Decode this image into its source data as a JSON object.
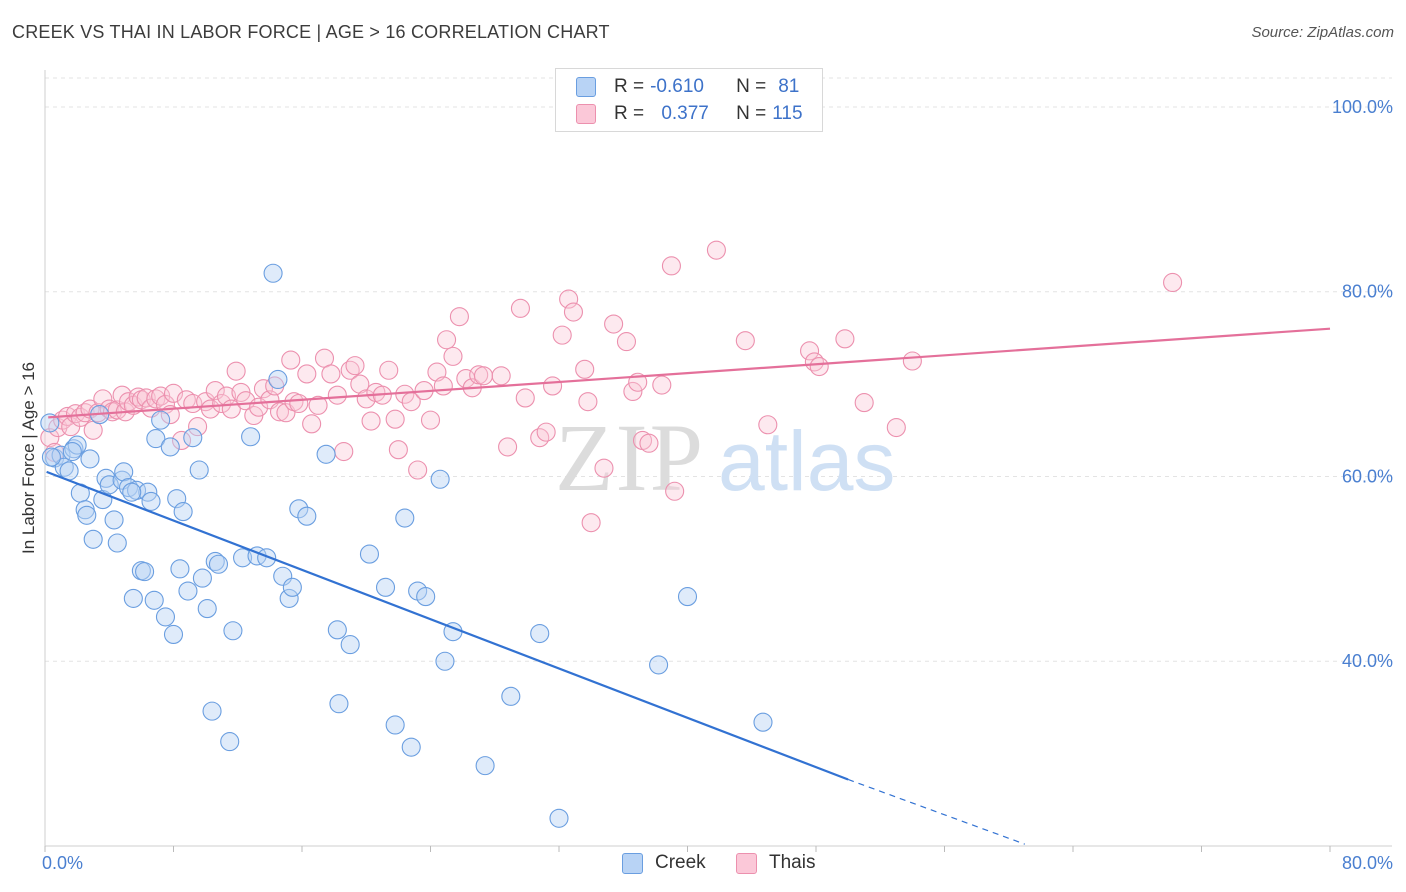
{
  "title": "CREEK VS THAI IN LABOR FORCE | AGE > 16 CORRELATION CHART",
  "source": "Source: ZipAtlas.com",
  "watermark": {
    "zip": "ZIP",
    "atlas": "atlas"
  },
  "legend": {
    "r_label": "R =",
    "n_label": "N =",
    "rows": [
      {
        "r": "-0.610",
        "n": "81",
        "fill": "#b8d3f5",
        "stroke": "#6a9ee0"
      },
      {
        "r": "0.377",
        "n": "115",
        "fill": "#fbc8d8",
        "stroke": "#ec90ae"
      }
    ]
  },
  "colors": {
    "creek_line": "#3272d2",
    "thai_line": "#e4709a",
    "grid": "#e3e3e3",
    "tick_label": "#4a7fd0"
  },
  "chart_data": {
    "type": "scatter",
    "xlabel": "",
    "ylabel": "In Labor Force | Age > 16",
    "xlim": [
      0,
      80
    ],
    "ylim": [
      20,
      104
    ],
    "x_tick_labels": [
      {
        "value": 0,
        "label": "0.0%"
      },
      {
        "value": 80,
        "label": "80.0%"
      }
    ],
    "y_tick_labels": [
      {
        "value": 40,
        "label": "40.0%"
      },
      {
        "value": 60,
        "label": "60.0%"
      },
      {
        "value": 80,
        "label": "80.0%"
      },
      {
        "value": 100,
        "label": "100.0%"
      }
    ],
    "y_grid": [
      40,
      60,
      80,
      100
    ],
    "grid": true,
    "legend_position": "top-center",
    "series": [
      {
        "name": "Creek",
        "r": -0.61,
        "n": 81,
        "trend": {
          "x0": 0.1,
          "y0": 60.5,
          "x1": 50,
          "y1": 27.2,
          "dash_to_x": 61,
          "dash_to_y": 20.2
        },
        "points": [
          [
            0.3,
            65.8
          ],
          [
            0.6,
            62.0
          ],
          [
            1.0,
            62.3
          ],
          [
            1.2,
            61.0
          ],
          [
            1.5,
            60.6
          ],
          [
            1.8,
            63.0
          ],
          [
            2.0,
            63.4
          ],
          [
            2.2,
            58.2
          ],
          [
            2.5,
            56.4
          ],
          [
            2.6,
            55.8
          ],
          [
            2.8,
            61.9
          ],
          [
            3.0,
            53.2
          ],
          [
            3.4,
            66.7
          ],
          [
            3.6,
            57.5
          ],
          [
            3.8,
            59.8
          ],
          [
            4.0,
            59.1
          ],
          [
            4.3,
            55.3
          ],
          [
            4.5,
            52.8
          ],
          [
            4.8,
            59.6
          ],
          [
            4.9,
            60.5
          ],
          [
            5.2,
            58.8
          ],
          [
            5.5,
            46.8
          ],
          [
            5.7,
            58.5
          ],
          [
            6.0,
            49.8
          ],
          [
            6.2,
            49.7
          ],
          [
            6.4,
            58.3
          ],
          [
            6.6,
            57.3
          ],
          [
            6.8,
            46.6
          ],
          [
            6.9,
            64.1
          ],
          [
            7.2,
            66.1
          ],
          [
            7.5,
            44.8
          ],
          [
            7.8,
            63.2
          ],
          [
            8.0,
            42.9
          ],
          [
            8.2,
            57.6
          ],
          [
            8.4,
            50.0
          ],
          [
            8.6,
            56.2
          ],
          [
            8.9,
            47.6
          ],
          [
            9.2,
            64.2
          ],
          [
            9.6,
            60.7
          ],
          [
            9.8,
            49.0
          ],
          [
            10.1,
            45.7
          ],
          [
            10.4,
            34.6
          ],
          [
            10.6,
            50.8
          ],
          [
            10.8,
            50.5
          ],
          [
            11.5,
            31.3
          ],
          [
            11.7,
            43.3
          ],
          [
            12.3,
            51.2
          ],
          [
            12.8,
            64.3
          ],
          [
            13.2,
            51.4
          ],
          [
            13.8,
            51.2
          ],
          [
            14.2,
            82.0
          ],
          [
            14.5,
            70.5
          ],
          [
            14.8,
            49.2
          ],
          [
            15.2,
            46.8
          ],
          [
            15.4,
            48.0
          ],
          [
            15.8,
            56.5
          ],
          [
            16.3,
            55.7
          ],
          [
            17.5,
            62.4
          ],
          [
            18.2,
            43.4
          ],
          [
            18.3,
            35.4
          ],
          [
            19.0,
            41.8
          ],
          [
            20.2,
            51.6
          ],
          [
            21.2,
            48.0
          ],
          [
            21.8,
            33.1
          ],
          [
            22.4,
            55.5
          ],
          [
            22.8,
            30.7
          ],
          [
            23.2,
            47.6
          ],
          [
            23.7,
            47.0
          ],
          [
            24.6,
            59.7
          ],
          [
            24.9,
            40.0
          ],
          [
            25.4,
            43.2
          ],
          [
            27.4,
            28.7
          ],
          [
            29.0,
            36.2
          ],
          [
            30.8,
            43.0
          ],
          [
            32.0,
            23.0
          ],
          [
            38.2,
            39.6
          ],
          [
            40.0,
            47.0
          ],
          [
            44.7,
            33.4
          ],
          [
            0.4,
            62.1
          ],
          [
            1.7,
            62.7
          ],
          [
            5.4,
            58.3
          ]
        ]
      },
      {
        "name": "Thais",
        "r": 0.377,
        "n": 115,
        "trend": {
          "x0": 0.2,
          "y0": 66.4,
          "x1": 80,
          "y1": 76.0
        },
        "points": [
          [
            0.3,
            64.2
          ],
          [
            0.6,
            62.6
          ],
          [
            0.8,
            65.3
          ],
          [
            1.1,
            66.1
          ],
          [
            1.4,
            66.5
          ],
          [
            1.6,
            65.4
          ],
          [
            1.9,
            66.8
          ],
          [
            2.2,
            66.4
          ],
          [
            2.5,
            66.9
          ],
          [
            2.8,
            67.3
          ],
          [
            3.0,
            65.0
          ],
          [
            3.3,
            66.9
          ],
          [
            3.6,
            68.4
          ],
          [
            4.0,
            67.3
          ],
          [
            4.2,
            67.0
          ],
          [
            4.5,
            67.2
          ],
          [
            4.8,
            68.8
          ],
          [
            5.0,
            67.0
          ],
          [
            5.2,
            68.1
          ],
          [
            5.5,
            67.7
          ],
          [
            5.8,
            68.6
          ],
          [
            6.0,
            68.3
          ],
          [
            6.3,
            68.5
          ],
          [
            6.6,
            67.4
          ],
          [
            6.9,
            68.4
          ],
          [
            7.2,
            68.7
          ],
          [
            7.5,
            67.8
          ],
          [
            7.8,
            66.7
          ],
          [
            8.0,
            69.0
          ],
          [
            8.5,
            63.9
          ],
          [
            8.8,
            68.3
          ],
          [
            9.2,
            67.9
          ],
          [
            9.5,
            65.4
          ],
          [
            10.0,
            68.1
          ],
          [
            10.3,
            67.3
          ],
          [
            10.6,
            69.3
          ],
          [
            11.0,
            67.9
          ],
          [
            11.3,
            68.7
          ],
          [
            11.6,
            67.3
          ],
          [
            11.9,
            71.4
          ],
          [
            12.2,
            69.1
          ],
          [
            12.5,
            68.2
          ],
          [
            13.0,
            66.6
          ],
          [
            13.3,
            67.5
          ],
          [
            13.6,
            69.5
          ],
          [
            14.0,
            68.3
          ],
          [
            14.3,
            69.8
          ],
          [
            14.6,
            67.0
          ],
          [
            15.0,
            66.9
          ],
          [
            15.3,
            72.6
          ],
          [
            15.5,
            68.1
          ],
          [
            15.8,
            67.9
          ],
          [
            16.3,
            71.1
          ],
          [
            16.6,
            65.7
          ],
          [
            17.0,
            67.7
          ],
          [
            17.4,
            72.8
          ],
          [
            17.8,
            71.1
          ],
          [
            18.2,
            68.8
          ],
          [
            18.6,
            62.7
          ],
          [
            19.0,
            71.5
          ],
          [
            19.3,
            72.0
          ],
          [
            19.6,
            70.0
          ],
          [
            20.0,
            68.4
          ],
          [
            20.3,
            66.0
          ],
          [
            20.6,
            69.1
          ],
          [
            21.0,
            68.8
          ],
          [
            21.4,
            71.5
          ],
          [
            21.8,
            66.2
          ],
          [
            22.0,
            62.9
          ],
          [
            22.4,
            68.9
          ],
          [
            22.8,
            68.1
          ],
          [
            23.2,
            60.7
          ],
          [
            23.6,
            69.3
          ],
          [
            24.0,
            66.1
          ],
          [
            24.4,
            71.3
          ],
          [
            24.8,
            69.8
          ],
          [
            25.0,
            74.8
          ],
          [
            25.4,
            73.0
          ],
          [
            25.8,
            77.3
          ],
          [
            26.2,
            70.6
          ],
          [
            26.6,
            69.6
          ],
          [
            27.0,
            71.0
          ],
          [
            27.3,
            70.9
          ],
          [
            28.4,
            70.9
          ],
          [
            28.8,
            63.2
          ],
          [
            29.6,
            78.2
          ],
          [
            29.9,
            68.5
          ],
          [
            30.8,
            64.2
          ],
          [
            31.2,
            64.8
          ],
          [
            31.6,
            69.8
          ],
          [
            32.2,
            75.3
          ],
          [
            32.6,
            79.2
          ],
          [
            32.9,
            77.8
          ],
          [
            33.6,
            71.6
          ],
          [
            34.0,
            55.0
          ],
          [
            33.8,
            68.1
          ],
          [
            34.8,
            60.9
          ],
          [
            35.4,
            76.5
          ],
          [
            36.2,
            74.6
          ],
          [
            36.6,
            69.2
          ],
          [
            36.9,
            70.2
          ],
          [
            37.2,
            63.9
          ],
          [
            37.6,
            63.6
          ],
          [
            38.4,
            69.9
          ],
          [
            39.2,
            58.4
          ],
          [
            39.0,
            82.8
          ],
          [
            41.8,
            84.5
          ],
          [
            43.6,
            74.7
          ],
          [
            45.0,
            65.6
          ],
          [
            47.6,
            73.6
          ],
          [
            47.9,
            72.4
          ],
          [
            48.2,
            71.9
          ],
          [
            49.8,
            74.9
          ],
          [
            51.0,
            68.0
          ],
          [
            53.0,
            65.3
          ],
          [
            54.0,
            72.5
          ],
          [
            70.2,
            81.0
          ]
        ]
      }
    ]
  },
  "bottom_legend": [
    {
      "label": "Creek",
      "fill": "#b8d3f5",
      "stroke": "#6a9ee0"
    },
    {
      "label": "Thais",
      "fill": "#fbc8d8",
      "stroke": "#ec90ae"
    }
  ]
}
